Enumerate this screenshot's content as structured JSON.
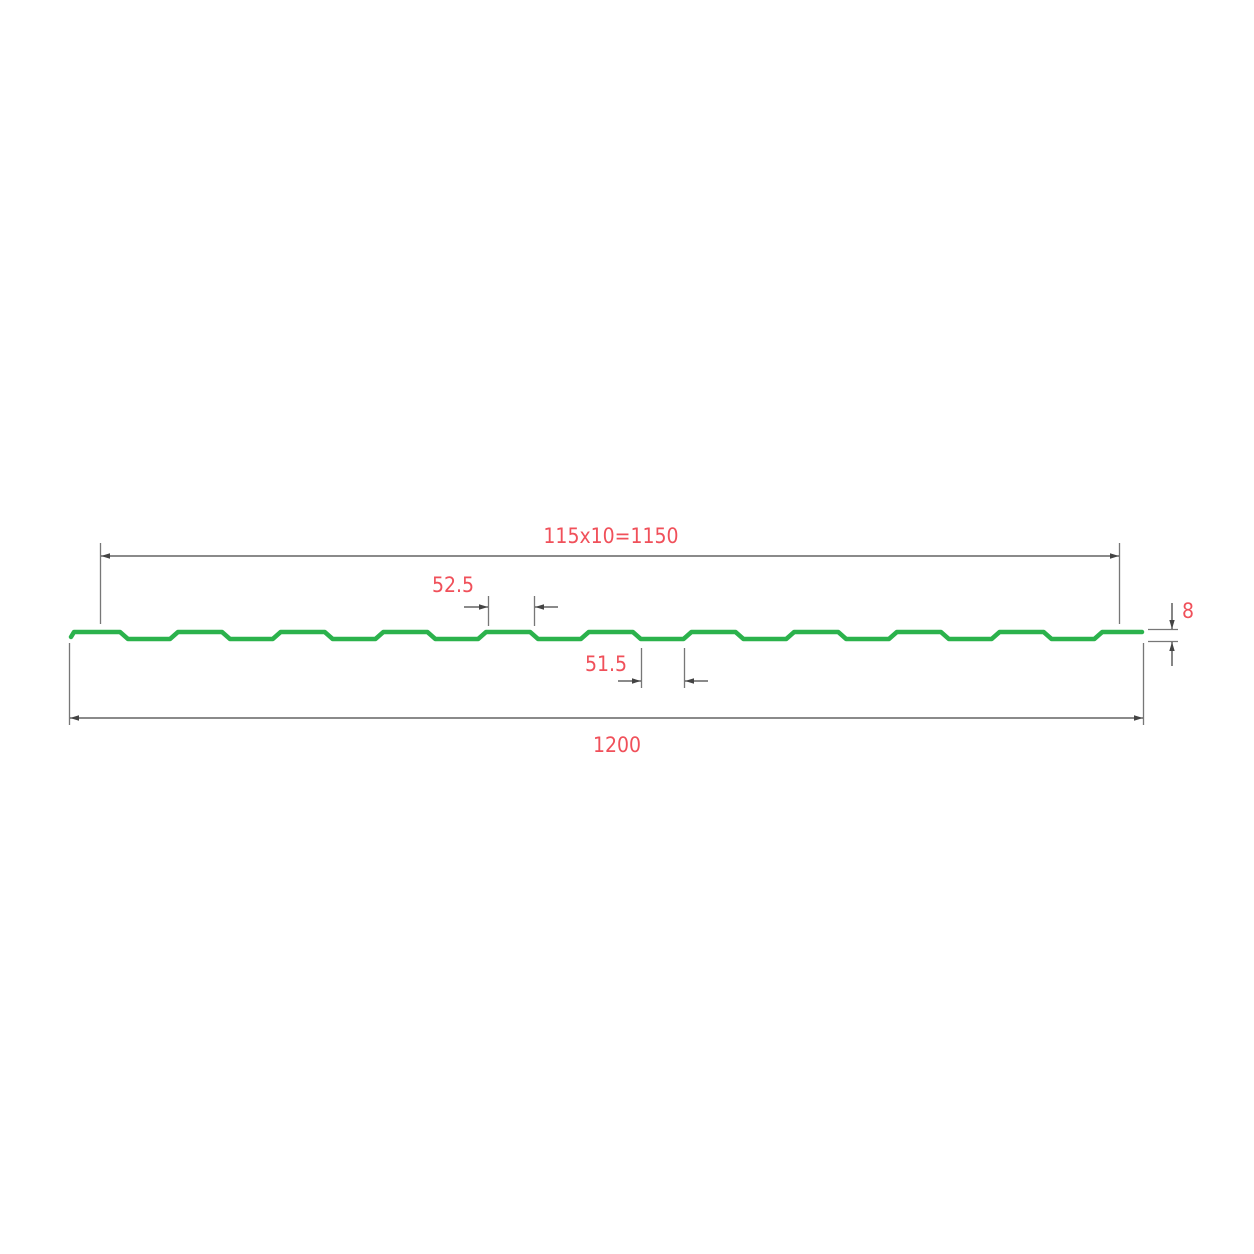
{
  "colors": {
    "profile": "#2bb24c",
    "dimension_line": "#444444",
    "label": "#f0505a"
  },
  "dimensions": {
    "useful_width": "115x10=1150",
    "crest_width": "52.5",
    "trough_width": "51.5",
    "height": "8",
    "total_width": "1200"
  },
  "profile": {
    "ribs": 10
  }
}
